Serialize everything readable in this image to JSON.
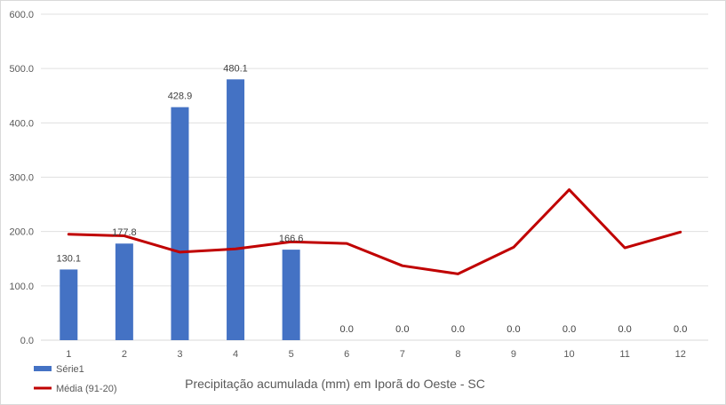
{
  "chart_data": {
    "type": "bar",
    "title": "Precipitação acumulada (mm)  em Iporã do Oeste - SC",
    "xlabel": "",
    "ylabel": "",
    "categories": [
      "1",
      "2",
      "3",
      "4",
      "5",
      "6",
      "7",
      "8",
      "9",
      "10",
      "11",
      "12"
    ],
    "ylim": [
      0,
      600
    ],
    "yticks": [
      "0.0",
      "100.0",
      "200.0",
      "300.0",
      "400.0",
      "500.0",
      "600.0"
    ],
    "grid": true,
    "legend_position": "bottom-left",
    "series": [
      {
        "name": "Série1",
        "type": "bar",
        "color": "#4472c4",
        "values": [
          130.1,
          177.8,
          428.9,
          480.1,
          166.6,
          0.0,
          0.0,
          0.0,
          0.0,
          0.0,
          0.0,
          0.0
        ],
        "labels": [
          "130.1",
          "177.8",
          "428.9",
          "480.1",
          "166.6",
          "0.0",
          "0.0",
          "0.0",
          "0.0",
          "0.0",
          "0.0",
          "0.0"
        ]
      },
      {
        "name": "Média (91-20)",
        "type": "line",
        "color": "#c00000",
        "values": [
          195,
          192,
          162,
          168,
          181,
          178,
          137,
          122,
          171,
          277,
          170,
          199
        ]
      }
    ]
  }
}
